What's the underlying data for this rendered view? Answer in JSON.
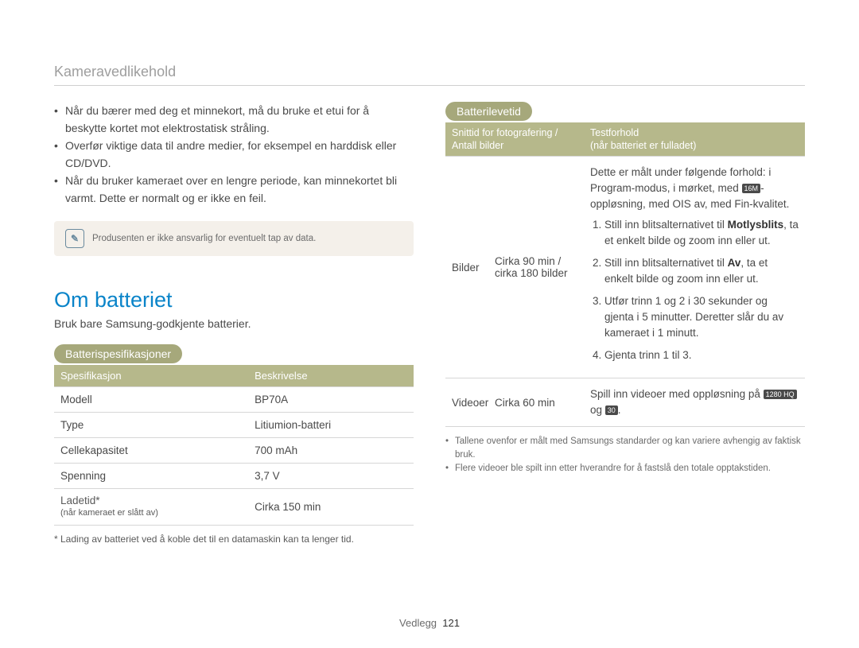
{
  "header": {
    "title": "Kameravedlikehold"
  },
  "left": {
    "bullets": [
      "Når du bærer med deg et minnekort, må du bruke et etui for å beskytte kortet mot elektrostatisk stråling.",
      "Overfør viktige data til andre medier, for eksempel en harddisk eller CD/DVD.",
      "Når du bruker kameraet over en lengre periode, kan minnekortet bli varmt. Dette er normalt og er ikke en feil."
    ],
    "note_text": "Produsenten er ikke ansvarlig for eventuelt tap av data.",
    "h2": "Om batteriet",
    "subline": "Bruk bare Samsung-godkjente batterier.",
    "pill_spec": "Batterispesifikasjoner",
    "spec_head": {
      "l": "Spesifikasjon",
      "r": "Beskrivelse"
    },
    "spec_rows": [
      {
        "l": "Modell",
        "r": "BP70A"
      },
      {
        "l": "Type",
        "r": "Litiumion-batteri"
      },
      {
        "l": "Cellekapasitet",
        "r": "700 mAh"
      },
      {
        "l": "Spenning",
        "r": "3,7 V"
      }
    ],
    "spec_last": {
      "l1": "Ladetid*",
      "l2": "(når kameraet er slått av)",
      "r": "Cirka 150 min"
    },
    "spec_footnote": "* Lading av batteriet ved å koble det til en datamaskin kan ta lenger tid."
  },
  "right": {
    "pill_life": "Batterilevetid",
    "life_head": {
      "l1": "Snittid for fotografering /",
      "l2": "Antall bilder",
      "r1": "Testforhold",
      "r2": "(når batteriet er fulladet)"
    },
    "row1": {
      "label": "Bilder",
      "time": "Cirka 90 min / cirka 180 bilder",
      "cond_intro_a": "Dette er målt under følgende forhold: i Program-modus, i mørket, med ",
      "cond_intro_icon": "16M",
      "cond_intro_b": "-oppløsning, med OIS av, med Fin-kvalitet.",
      "steps": [
        "Still inn blitsalternativet til <span class=\"bold\">Motlysblits</span>, ta et enkelt bilde og zoom inn eller ut.",
        "Still inn blitsalternativet til <span class=\"bold\">Av</span>, ta et enkelt bilde og zoom inn eller ut.",
        "Utfør trinn 1 og 2 i 30 sekunder og gjenta i 5 minutter. Deretter slår du av kameraet i 1 minutt.",
        "Gjenta trinn 1 til 3."
      ]
    },
    "row2": {
      "label": "Videoer",
      "time": "Cirka 60 min",
      "cond_a": "Spill inn videoer med oppløsning på ",
      "cond_icon1": "1280 HQ",
      "cond_mid": " og ",
      "cond_icon2": "30",
      "cond_end": "."
    },
    "small_bullets": [
      "Tallene ovenfor er målt med Samsungs standarder og kan variere avhengig av faktisk bruk.",
      "Flere videoer ble spilt inn etter hverandre for å fastslå den totale opptakstiden."
    ]
  },
  "footer": {
    "label": "Vedlegg",
    "page": "121"
  }
}
